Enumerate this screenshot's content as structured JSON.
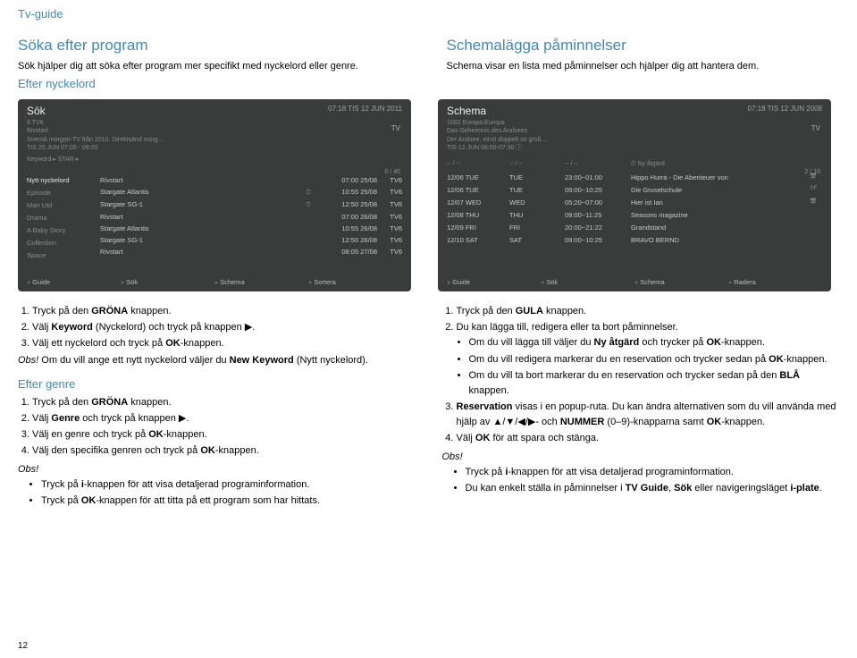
{
  "page_header": "Tv-guide",
  "pagenum": "12",
  "left_top": {
    "title": "Söka efter program",
    "intro": "Sök hjälper dig att söka efter program mer specifikt med nyckelord eller genre.",
    "sub": "Efter nyckelord"
  },
  "right_top": {
    "title": "Schemalägga påminnelser",
    "intro": "Schema visar en lista med påminnelser och hjälper dig att hantera dem."
  },
  "ss_left": {
    "title": "Sök",
    "time": "07:18 TIS  12 JUN 2011",
    "tv": "TV",
    "counter": "0 / 40",
    "sub1": "6 TV6",
    "sub2": "Rivstart",
    "sub3": "Svensk morgon-TV från 2010. Direktsänd morg…",
    "sub4": "TIS    25 JUN 07:00 - 09:00",
    "crumb": "Keyword ▸ STAR ▸",
    "sidebar": [
      "Nytt nyckelord",
      "Episode",
      "Man Utd",
      "Drama",
      "A Baby Story",
      "Collection",
      "Space"
    ],
    "rows": [
      {
        "n": "Rivstart",
        "t": "07:00 25/08",
        "c": "TV6",
        "i": ""
      },
      {
        "n": "Stargate Atlantis",
        "t": "10:55 25/08",
        "c": "TV6",
        "i": "⏱"
      },
      {
        "n": "Stargate SG-1",
        "t": "12:50 25/08",
        "c": "TV6",
        "i": "⏱"
      },
      {
        "n": "Rivstart",
        "t": "07:00 26/08",
        "c": "TV6",
        "i": ""
      },
      {
        "n": "Stargate Atlantis",
        "t": "10:55 26/08",
        "c": "TV6",
        "i": ""
      },
      {
        "n": "Stargate SG-1",
        "t": "12:50 26/08",
        "c": "TV6",
        "i": ""
      },
      {
        "n": "Rivstart",
        "t": "08:05 27/08",
        "c": "TV6",
        "i": ""
      }
    ],
    "footer": [
      "Guide",
      "Sök",
      "Schema",
      "Sortera"
    ]
  },
  "ss_right": {
    "title": "Schema",
    "time": "07:18 TIS  12 JUN 2008",
    "tv": "TV",
    "counter": "2 / 16",
    "sub1": "1002   Europa Europa",
    "sub2": "Das Geheimnis des Aralsees",
    "sub3": "Der Aralsee, einst doppelt so groß…",
    "sub4": "TIS   12 JUN  06:00-07:30 ⓘ",
    "head": [
      "-- / --",
      "-- / --",
      "-- / --",
      "⏱ Ny åtgärd"
    ],
    "rows": [
      {
        "d": "12/06  TUE",
        "w": "TUE",
        "t": "23:00~01:00",
        "p": "Hippo Hurra - Die Abenteuer von",
        "g": "🎬"
      },
      {
        "d": "12/06  TUE",
        "w": "TUE",
        "t": "09:00~10:25",
        "p": "Die Gruselschule",
        "g": "⏱F"
      },
      {
        "d": "12/07  WED",
        "w": "WED",
        "t": "05:20~07:00",
        "p": "Hier ist Ian",
        "g": "🎬"
      },
      {
        "d": "12/08  THU",
        "w": "THU",
        "t": "09:00~11:25",
        "p": "Seasons magazine",
        "g": ""
      },
      {
        "d": "12/09  FRI",
        "w": "FRI",
        "t": "20:00~21:22",
        "p": "Grandstand",
        "g": ""
      },
      {
        "d": "12/10  SAT",
        "w": "SAT",
        "t": "09:00~10:25",
        "p": "BRAVO BERND",
        "g": ""
      }
    ],
    "footer": [
      "Guide",
      "Sök",
      "Schema",
      "Radera"
    ]
  },
  "bl": {
    "steps1": [
      "Tryck på den <b>GRÖNA</b> knappen.",
      "Välj <b>Keyword</b> (Nyckelord) och tryck på knappen ▶.",
      "Välj ett nyckelord och tryck på <b>OK</b>-knappen."
    ],
    "note1_lbl": "Obs!",
    "note1": "Om du vill ange ett nytt nyckelord väljer du <b>New Keyword</b> (Nytt nyckelord).",
    "sub2": "Efter genre",
    "steps2": [
      "Tryck på den <b>GRÖNA</b> knappen.",
      "Välj <b>Genre</b> och tryck på knappen ▶.",
      "Välj en genre och tryck på <b>OK</b>-knappen.",
      "Välj den specifika genren och tryck på <b>OK</b>-knappen."
    ],
    "note2_lbl": "Obs!",
    "notes2": [
      "Tryck på <b>i</b>-knappen för att visa detaljerad programinformation.",
      "Tryck på <b>OK</b>-knappen för att titta på ett program som har hittats."
    ]
  },
  "br": {
    "steps": [
      "Tryck på den <b>GULA</b> knappen.",
      "Du kan lägga till, redigera eller ta bort påminnelser."
    ],
    "sub_bullets": [
      "Om du vill lägga till väljer du <b>Ny åtgärd</b> och trycker på <b>OK</b>-knappen.",
      "Om du vill redigera markerar du en reservation och trycker sedan på <b>OK</b>-knappen.",
      "Om du vill ta bort markerar du en reservation och trycker sedan på den <b>BLÅ</b> knappen."
    ],
    "steps2": [
      "<b>Reservation</b> visas i en popup-ruta. Du kan ändra alternativen som du vill använda med hjälp av ▲/▼/◀/▶- och <b>NUMMER</b> (0–9)-knapparna samt <b>OK</b>-knappen.",
      "Välj <b>OK</b> för att spara och stänga."
    ],
    "note_lbl": "Obs!",
    "notes": [
      "Tryck på <b>i</b>-knappen för att visa detaljerad programinformation.",
      "Du kan enkelt ställa in påminnelser i <b>TV Guide</b>, <b>Sök</b> eller navigeringsläget <b>i-plate</b>."
    ]
  }
}
